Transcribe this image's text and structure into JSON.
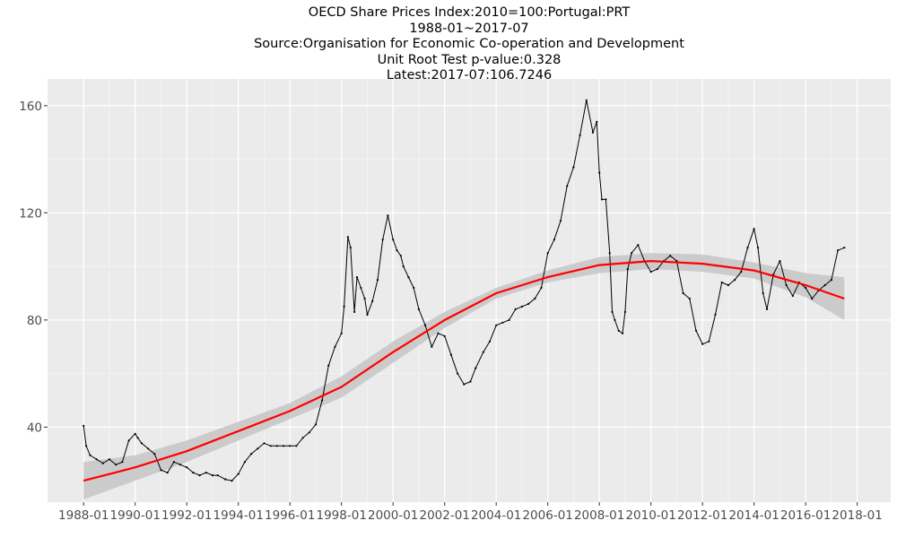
{
  "chart_data": {
    "type": "line",
    "title_lines": [
      "OECD Share Prices Index:2010=100:Portugal:PRT",
      "1988-01~2017-07",
      "Source:Organisation for Economic Co-operation and Development",
      "Unit Root Test p-value:0.328",
      "Latest:2017-07:106.7246"
    ],
    "xlabel": "",
    "ylabel": "",
    "xlim": [
      1986.6,
      2019.3
    ],
    "ylim": [
      12,
      170
    ],
    "x_ticks": [
      1988,
      1990,
      1992,
      1994,
      1996,
      1998,
      2000,
      2002,
      2004,
      2006,
      2008,
      2010,
      2012,
      2014,
      2016,
      2018
    ],
    "x_tick_labels": [
      "1988-01",
      "1990-01",
      "1992-01",
      "1994-01",
      "1996-01",
      "1998-01",
      "2000-01",
      "2002-01",
      "2004-01",
      "2006-01",
      "2008-01",
      "2010-01",
      "2012-01",
      "2014-01",
      "2016-01",
      "2018-01"
    ],
    "y_ticks": [
      40,
      80,
      120,
      160
    ],
    "y_tick_labels": [
      "40",
      "80",
      "120",
      "160"
    ],
    "grid": true,
    "series": [
      {
        "name": "Share Prices Index",
        "color": "#000000",
        "x": [
          1988.0,
          1988.1,
          1988.25,
          1988.5,
          1988.75,
          1989.0,
          1989.25,
          1989.5,
          1989.75,
          1990.0,
          1990.1,
          1990.25,
          1990.5,
          1990.75,
          1991.0,
          1991.25,
          1991.5,
          1991.75,
          1992.0,
          1992.25,
          1992.5,
          1992.75,
          1993.0,
          1993.2,
          1993.5,
          1993.75,
          1994.0,
          1994.25,
          1994.5,
          1994.75,
          1995.0,
          1995.25,
          1995.5,
          1995.75,
          1996.0,
          1996.25,
          1996.5,
          1996.75,
          1997.0,
          1997.25,
          1997.5,
          1997.75,
          1998.0,
          1998.1,
          1998.25,
          1998.35,
          1998.5,
          1998.6,
          1998.75,
          1998.9,
          1999.0,
          1999.2,
          1999.4,
          1999.6,
          1999.8,
          2000.0,
          2000.15,
          2000.3,
          2000.4,
          2000.6,
          2000.8,
          2001.0,
          2001.25,
          2001.5,
          2001.75,
          2002.0,
          2002.25,
          2002.5,
          2002.75,
          2003.0,
          2003.2,
          2003.5,
          2003.75,
          2004.0,
          2004.25,
          2004.5,
          2004.75,
          2005.0,
          2005.25,
          2005.5,
          2005.75,
          2006.0,
          2006.25,
          2006.5,
          2006.75,
          2007.0,
          2007.25,
          2007.5,
          2007.75,
          2007.9,
          2008.0,
          2008.1,
          2008.25,
          2008.4,
          2008.5,
          2008.6,
          2008.75,
          2008.9,
          2009.0,
          2009.1,
          2009.25,
          2009.5,
          2009.75,
          2010.0,
          2010.25,
          2010.5,
          2010.75,
          2011.0,
          2011.25,
          2011.5,
          2011.75,
          2012.0,
          2012.25,
          2012.5,
          2012.75,
          2013.0,
          2013.25,
          2013.5,
          2013.75,
          2014.0,
          2014.15,
          2014.35,
          2014.5,
          2014.75,
          2015.0,
          2015.25,
          2015.5,
          2015.75,
          2016.0,
          2016.25,
          2016.5,
          2016.75,
          2017.0,
          2017.25,
          2017.5
        ],
        "y": [
          40.5,
          33,
          29.5,
          28,
          26.5,
          28,
          26,
          27,
          35,
          37.5,
          36,
          34,
          32,
          30,
          24,
          23,
          27,
          26,
          25,
          23,
          22,
          23,
          22,
          22,
          20.5,
          20,
          22.5,
          27,
          30,
          32,
          34,
          33,
          33,
          33,
          33,
          33,
          36,
          38,
          41,
          50,
          63,
          70,
          75,
          85,
          111,
          107,
          83,
          96,
          92,
          88,
          82,
          87,
          95,
          110,
          119,
          110,
          106,
          104,
          100,
          96,
          92,
          84,
          78,
          70,
          75,
          74,
          67,
          60,
          56,
          57,
          62,
          68,
          72,
          78,
          79,
          80,
          84,
          85,
          86,
          88,
          92,
          105,
          110,
          117,
          130,
          137,
          149,
          162,
          150,
          154,
          135,
          125,
          125,
          105,
          83,
          80,
          76,
          75,
          83,
          99,
          105,
          108,
          102,
          98,
          99,
          102,
          104,
          102,
          90,
          88,
          76,
          71,
          72,
          82,
          94,
          93,
          95,
          98,
          107,
          114,
          107,
          90,
          84,
          97,
          102,
          93,
          89,
          94,
          92,
          88,
          91,
          93,
          95,
          106,
          107
        ]
      },
      {
        "name": "Trend",
        "color": "#ff0000",
        "x": [
          1988.0,
          1990.0,
          1992.0,
          1994.0,
          1996.0,
          1998.0,
          2000.0,
          2002.0,
          2004.0,
          2006.0,
          2008.0,
          2010.0,
          2012.0,
          2014.0,
          2016.0,
          2017.5
        ],
        "y": [
          20,
          25,
          31,
          38.5,
          46,
          55,
          68,
          80,
          90,
          96,
          100.5,
          102,
          101,
          98.5,
          93,
          88
        ]
      }
    ],
    "confidence_band": {
      "color": "#c8c8c8",
      "x": [
        1988.0,
        1990.0,
        1992.0,
        1994.0,
        1996.0,
        1998.0,
        2000.0,
        2002.0,
        2004.0,
        2006.0,
        2008.0,
        2010.0,
        2012.0,
        2014.0,
        2016.0,
        2017.5
      ],
      "lower": [
        13,
        20,
        27,
        35,
        43,
        51,
        64,
        77,
        88,
        94,
        97.5,
        99,
        98,
        95.5,
        88.5,
        80
      ],
      "upper": [
        27,
        29.5,
        35,
        42,
        49,
        59,
        72,
        83,
        92,
        98.5,
        103.5,
        105,
        104.5,
        101.5,
        97.5,
        96
      ]
    }
  }
}
